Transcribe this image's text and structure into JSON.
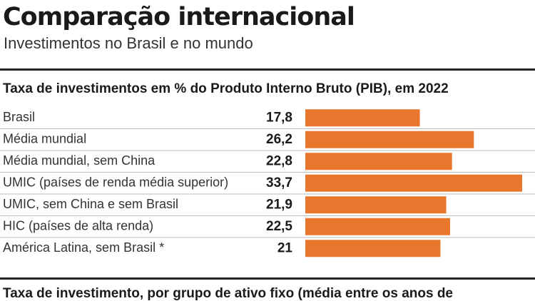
{
  "chart_data": {
    "type": "hbar",
    "title": "Comparação internacional",
    "subtitle": "Investimentos no Brasil e no mundo",
    "section_title": "Taxa de investimentos em % do Produto Interno Bruto (PIB), em 2022",
    "categories": [
      "Brasil",
      "Média mundial",
      "Média mundial, sem China",
      "UMIC (países de renda média superior)",
      "UMIC, sem China e sem Brasil",
      "HIC (países de alta renda)",
      "América Latina, sem Brasil *"
    ],
    "values": [
      17.8,
      26.2,
      22.8,
      33.7,
      21.9,
      22.5,
      21
    ],
    "value_labels": [
      "17,8",
      "26,2",
      "22,8",
      "33,7",
      "21,9",
      "22,5",
      "21"
    ],
    "color": "#e8762c",
    "next_section_title": "Taxa de investimento, por grupo de ativo fixo (média entre os anos de"
  }
}
